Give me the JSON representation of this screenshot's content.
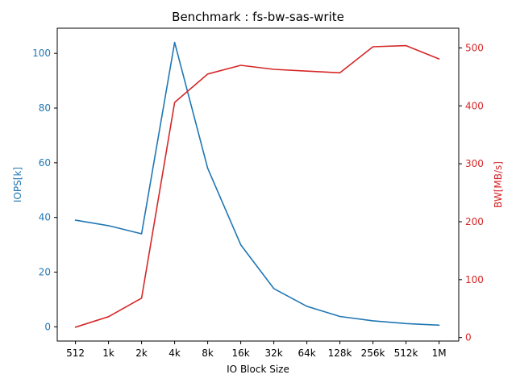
{
  "chart_data": {
    "type": "line",
    "title": "Benchmark : fs-bw-sas-write",
    "xlabel": "IO Block Size",
    "categories": [
      "512",
      "1k",
      "2k",
      "4k",
      "8k",
      "16k",
      "32k",
      "64k",
      "128k",
      "256k",
      "512k",
      "1M"
    ],
    "left_axis": {
      "label": "IOPS[k]",
      "color": "#1f77b4",
      "ylim": [
        -5.2,
        109.2
      ],
      "ticks": [
        0,
        20,
        40,
        60,
        80,
        100
      ]
    },
    "right_axis": {
      "label": "BW[MB/s]",
      "color": "#d62728",
      "ylim": [
        -6,
        534
      ],
      "ticks": [
        0,
        100,
        200,
        300,
        400,
        500
      ]
    },
    "series": [
      {
        "axis": "left",
        "color": "#1f77b4",
        "values": [
          39,
          37,
          34,
          104,
          58,
          30,
          14,
          7.5,
          3.8,
          2.2,
          1.2,
          0.6
        ]
      },
      {
        "axis": "right",
        "color": "#d62728",
        "values": [
          18,
          36,
          68,
          406,
          455,
          470,
          463,
          460,
          457,
          502,
          504,
          481
        ]
      }
    ],
    "grid": false,
    "legend": "none"
  }
}
